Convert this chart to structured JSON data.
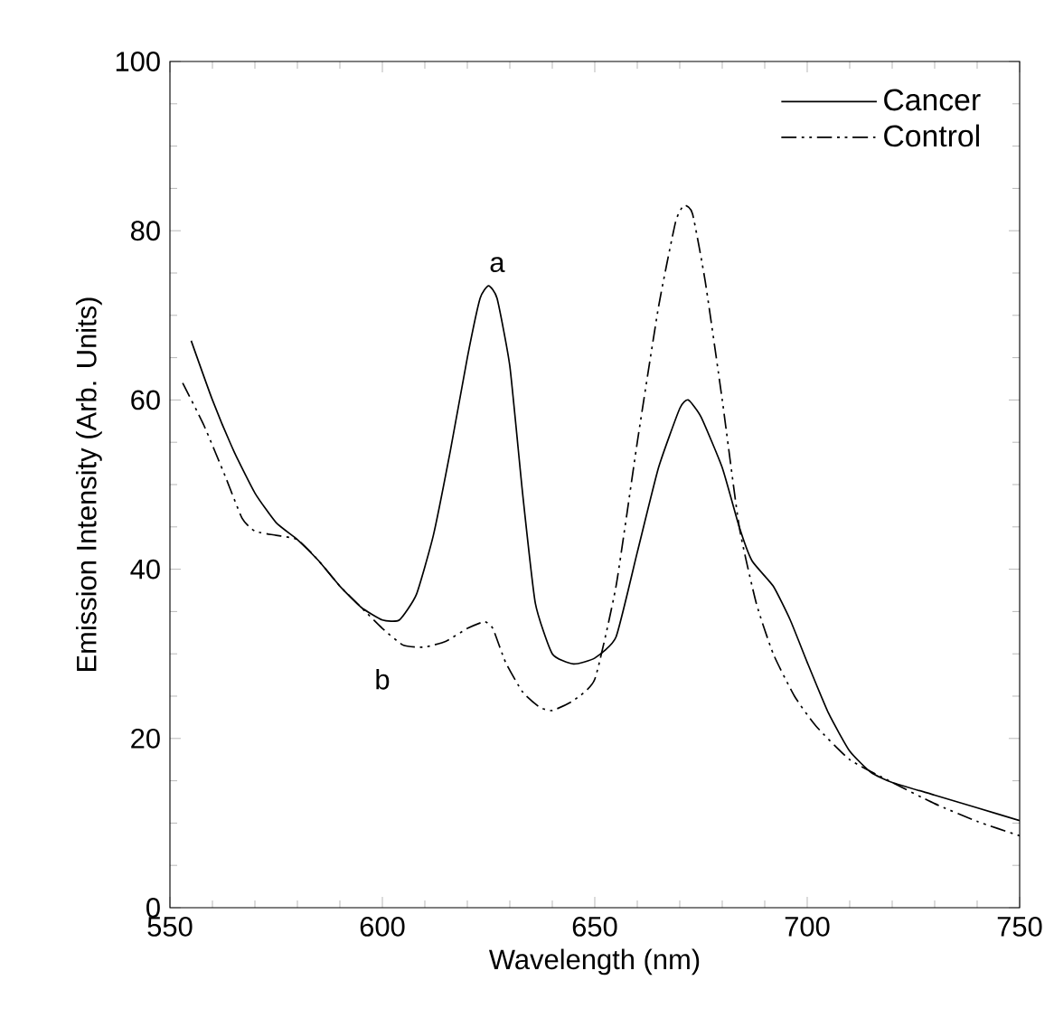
{
  "chart_data": {
    "type": "line",
    "xlabel": "Wavelength (nm)",
    "ylabel": "Emission Intensity (Arb. Units)",
    "xlim": [
      550,
      750
    ],
    "ylim": [
      0,
      100
    ],
    "xticks": [
      550,
      600,
      650,
      700,
      750
    ],
    "yticks": [
      0,
      20,
      40,
      60,
      80,
      100
    ],
    "grid": false,
    "legend": "top right",
    "marker": "none",
    "series": [
      {
        "name": "Cancer",
        "color": "#000000",
        "line_style": "solid",
        "x": [
          555,
          560,
          565,
          570,
          575,
          580,
          585,
          590,
          595,
          600,
          604,
          608,
          612,
          616,
          620,
          623,
          625,
          627,
          630,
          633,
          636,
          640,
          645,
          650,
          655,
          660,
          665,
          670,
          672,
          675,
          680,
          684,
          687,
          692,
          696,
          700,
          705,
          710,
          715,
          720,
          730,
          740,
          750
        ],
        "values": [
          67,
          60,
          54,
          49,
          45.5,
          43.5,
          41,
          38,
          35.5,
          34,
          34,
          37,
          44,
          54,
          65,
          72,
          73.5,
          72,
          64,
          49,
          36,
          30,
          28.8,
          29.5,
          32,
          42,
          52,
          59,
          60,
          58,
          52,
          45,
          41,
          38,
          34,
          29,
          23,
          18.5,
          16,
          14.8,
          13.3,
          11.8,
          10.3
        ]
      },
      {
        "name": "Control",
        "color": "#000000",
        "line_style": "dashdotdot",
        "x": [
          553,
          558,
          563,
          567,
          570,
          575,
          580,
          585,
          590,
          595,
          600,
          605,
          610,
          615,
          620,
          624,
          626,
          629,
          633,
          637,
          640,
          645,
          650,
          655,
          660,
          665,
          669,
          671,
          673,
          676,
          680,
          684,
          688,
          692,
          697,
          702,
          710,
          720,
          730,
          740,
          750
        ],
        "values": [
          62,
          57,
          51,
          46,
          44.5,
          44,
          43.5,
          41,
          38,
          35.5,
          33,
          31,
          30.8,
          31.5,
          33,
          33.8,
          33,
          29,
          25.5,
          23.7,
          23.3,
          24.5,
          27,
          38,
          55,
          71,
          81,
          83,
          82,
          74,
          60,
          45,
          36,
          30,
          25,
          21.5,
          17.5,
          14.8,
          12.3,
          10.2,
          8.5
        ]
      }
    ],
    "annotations": [
      "a",
      "b"
    ]
  }
}
